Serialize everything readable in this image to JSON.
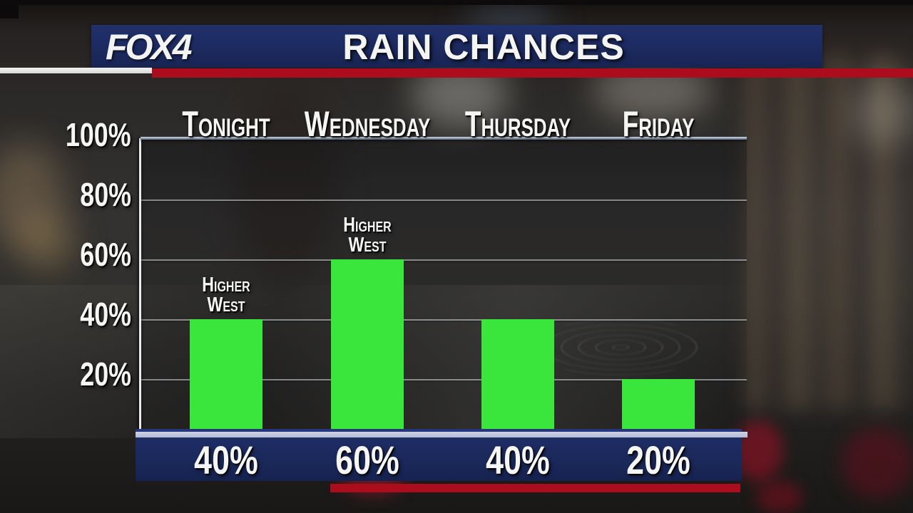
{
  "header": {
    "logo": "FOX4",
    "title": "RAIN CHANCES"
  },
  "chart_data": {
    "type": "bar",
    "title": "Rain Chances",
    "categories": [
      "Tonight",
      "Wednesday",
      "Thursday",
      "Friday"
    ],
    "values": [
      40,
      60,
      40,
      20
    ],
    "value_labels": [
      "40%",
      "60%",
      "40%",
      "20%"
    ],
    "y_ticks": [
      {
        "label": "100%",
        "value": 100
      },
      {
        "label": "80%",
        "value": 80
      },
      {
        "label": "60%",
        "value": 60
      },
      {
        "label": "40%",
        "value": 40
      },
      {
        "label": "20%",
        "value": 20
      }
    ],
    "ylim": [
      0,
      100
    ],
    "grid": true,
    "legend": "none",
    "bar_color": "#3ae63c",
    "annotations": [
      {
        "index": 0,
        "lines": [
          "Higher",
          "West"
        ]
      },
      {
        "index": 1,
        "lines": [
          "Higher",
          "West"
        ]
      }
    ]
  },
  "colors": {
    "navy": "#1c2a5f",
    "red": "#ab0d1d",
    "baseline_lavender": "#b9c0dc",
    "bar_green": "#3ae63c",
    "text": "#f5f5f3"
  }
}
